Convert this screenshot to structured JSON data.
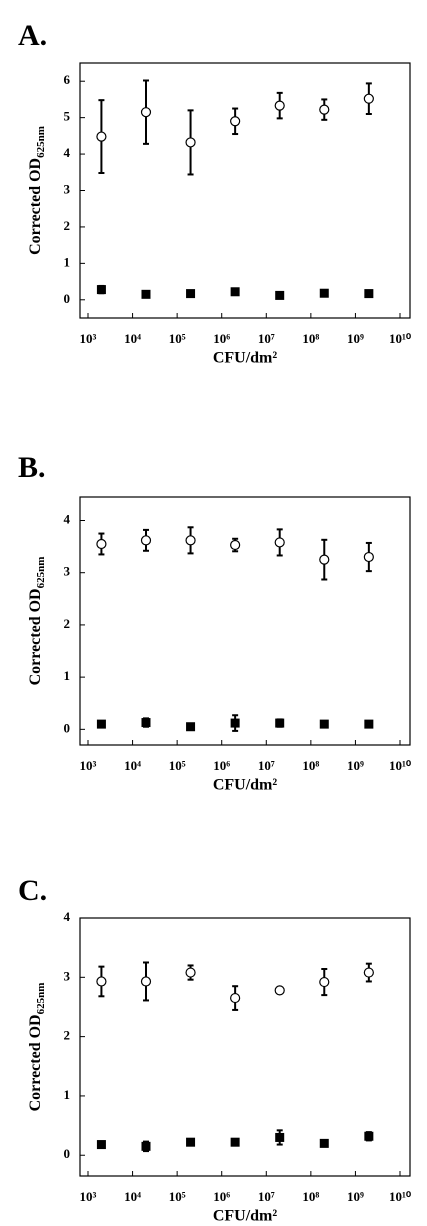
{
  "chart_data": [
    {
      "type": "scatter",
      "title": "A.",
      "x_label": "CFU/dm²",
      "y_label": {
        "text": "Corrected OD",
        "subscript": "625nm"
      },
      "xscale": "log",
      "xlim": [
        1000,
        10000000000
      ],
      "xticks": [
        {
          "value": 1000,
          "label": "10³"
        },
        {
          "value": 10000,
          "label": "10⁴"
        },
        {
          "value": 100000,
          "label": "10⁵"
        },
        {
          "value": 1000000,
          "label": "10⁶"
        },
        {
          "value": 10000000,
          "label": "10⁷"
        },
        {
          "value": 100000000,
          "label": "10⁸"
        },
        {
          "value": 1000000000,
          "label": "10⁹"
        },
        {
          "value": 10000000000,
          "label": "10¹⁰"
        }
      ],
      "ylim": [
        -0.5,
        6.5
      ],
      "yticks": [
        0,
        1,
        2,
        3,
        4,
        5,
        6
      ],
      "x": [
        2000,
        20000,
        200000,
        2000000,
        20000000,
        200000000,
        2000000000
      ],
      "series": [
        {
          "marker": "circle-open",
          "color": "#000000",
          "values": [
            4.48,
            5.15,
            4.32,
            4.9,
            5.33,
            5.22,
            5.52
          ],
          "errors": [
            1.0,
            0.87,
            0.88,
            0.35,
            0.35,
            0.28,
            0.42
          ]
        },
        {
          "marker": "square",
          "color": "#000000",
          "values": [
            0.28,
            0.15,
            0.17,
            0.22,
            0.12,
            0.18,
            0.17
          ],
          "errors": [
            0.1,
            0.04,
            0.03,
            0.04,
            0.04,
            0.03,
            0.05
          ]
        }
      ]
    },
    {
      "type": "scatter",
      "title": "B.",
      "x_label": "CFU/dm²",
      "y_label": {
        "text": "Corrected OD",
        "subscript": "625nm"
      },
      "xscale": "log",
      "xlim": [
        1000,
        10000000000
      ],
      "xticks": [
        {
          "value": 1000,
          "label": "10³"
        },
        {
          "value": 10000,
          "label": "10⁴"
        },
        {
          "value": 100000,
          "label": "10⁵"
        },
        {
          "value": 1000000,
          "label": "10⁶"
        },
        {
          "value": 10000000,
          "label": "10⁷"
        },
        {
          "value": 100000000,
          "label": "10⁸"
        },
        {
          "value": 1000000000,
          "label": "10⁹"
        },
        {
          "value": 10000000000,
          "label": "10¹⁰"
        }
      ],
      "ylim": [
        -0.3,
        4.45
      ],
      "yticks": [
        0,
        1,
        2,
        3,
        4
      ],
      "x": [
        2000,
        20000,
        200000,
        2000000,
        20000000,
        200000000,
        2000000000
      ],
      "series": [
        {
          "marker": "circle-open",
          "color": "#000000",
          "values": [
            3.55,
            3.62,
            3.62,
            3.53,
            3.58,
            3.25,
            3.3
          ],
          "errors": [
            0.2,
            0.2,
            0.25,
            0.12,
            0.25,
            0.38,
            0.27
          ]
        },
        {
          "marker": "square",
          "color": "#000000",
          "values": [
            0.1,
            0.13,
            0.05,
            0.12,
            0.12,
            0.1,
            0.1
          ],
          "errors": [
            0.03,
            0.08,
            0.02,
            0.15,
            0.07,
            0.02,
            0.02
          ]
        }
      ]
    },
    {
      "type": "scatter",
      "title": "C.",
      "x_label": "CFU/dm²",
      "y_label": {
        "text": "Corrected OD",
        "subscript": "625nm"
      },
      "xscale": "log",
      "xlim": [
        1000,
        10000000000
      ],
      "xticks": [
        {
          "value": 1000,
          "label": "10³"
        },
        {
          "value": 10000,
          "label": "10⁴"
        },
        {
          "value": 100000,
          "label": "10⁵"
        },
        {
          "value": 1000000,
          "label": "10⁶"
        },
        {
          "value": 10000000,
          "label": "10⁷"
        },
        {
          "value": 100000000,
          "label": "10⁸"
        },
        {
          "value": 1000000000,
          "label": "10⁹"
        },
        {
          "value": 10000000000,
          "label": "10¹⁰"
        }
      ],
      "ylim": [
        -0.35,
        4
      ],
      "yticks": [
        0,
        1,
        2,
        3,
        4
      ],
      "x": [
        2000,
        20000,
        200000,
        2000000,
        20000000,
        200000000,
        2000000000
      ],
      "series": [
        {
          "marker": "circle-open",
          "color": "#000000",
          "values": [
            2.93,
            2.93,
            3.08,
            2.65,
            2.78,
            2.92,
            3.08
          ],
          "errors": [
            0.25,
            0.32,
            0.12,
            0.2,
            0.03,
            0.22,
            0.15
          ]
        },
        {
          "marker": "square",
          "color": "#000000",
          "values": [
            0.18,
            0.15,
            0.22,
            0.22,
            0.3,
            0.2,
            0.32
          ],
          "errors": [
            0.03,
            0.08,
            0.03,
            0.03,
            0.12,
            0.03,
            0.07
          ]
        }
      ]
    }
  ]
}
